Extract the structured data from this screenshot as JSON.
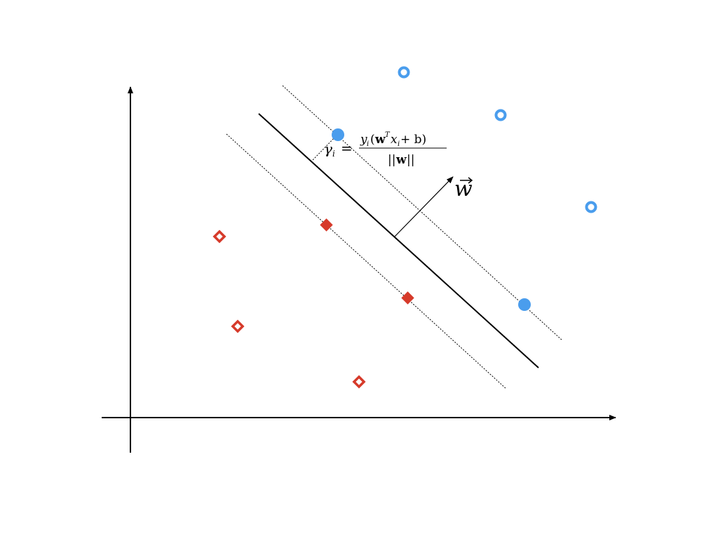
{
  "colors": {
    "class_positive": "#4a9ded",
    "class_negative": "#d63a2a",
    "axis": "#000000",
    "hyperplane": "#000000",
    "margin_line": "#000000"
  },
  "labels": {
    "weight_vector": "w",
    "margin_gamma": "γ",
    "margin_sub": "i",
    "margin_equals": "=",
    "numerator_y": "y",
    "numerator_sub_i": "i",
    "numerator_open": "(",
    "numerator_w": "w",
    "numerator_T": "T",
    "numerator_x": "x",
    "numerator_sub_i2": "i",
    "numerator_plus_b": " + b)",
    "denominator_open": "||",
    "denominator_w": "w",
    "denominator_close": "||"
  },
  "points": {
    "positive_support": 2,
    "positive_other": 3,
    "negative_support": 2,
    "negative_other": 3
  }
}
